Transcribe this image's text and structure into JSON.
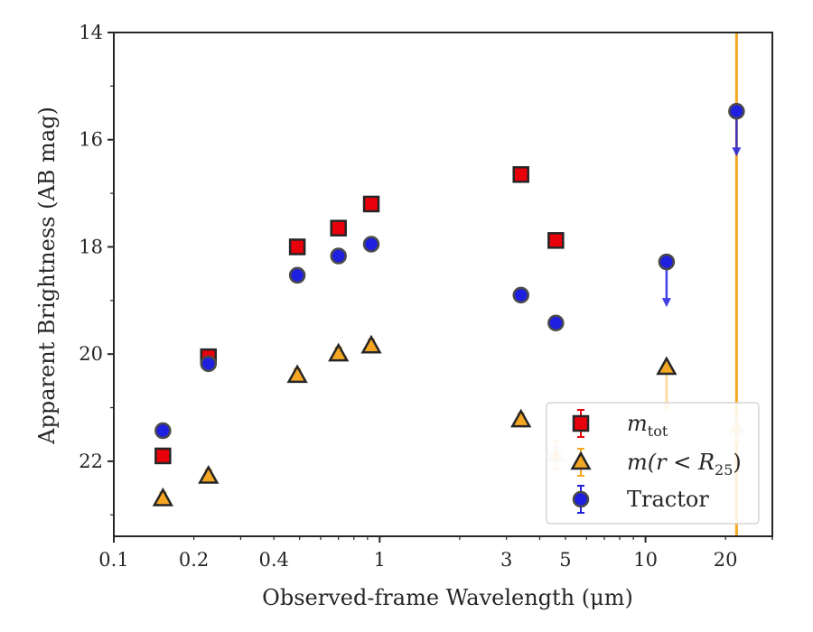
{
  "chart_data": {
    "type": "scatter",
    "xlabel": "Observed-frame Wavelength (μm)",
    "ylabel": "Apparent Brightness (AB mag)",
    "xscale": "log",
    "xlim": [
      0.1,
      30
    ],
    "ylim": [
      23.4,
      14
    ],
    "y_inverted": true,
    "x_ticks": [
      {
        "value": 0.1,
        "label": "0.1"
      },
      {
        "value": 0.2,
        "label": "0.2"
      },
      {
        "value": 0.4,
        "label": "0.4"
      },
      {
        "value": 1,
        "label": "1"
      },
      {
        "value": 3,
        "label": "3"
      },
      {
        "value": 5,
        "label": "5"
      },
      {
        "value": 10,
        "label": "10"
      },
      {
        "value": 20,
        "label": "20"
      }
    ],
    "y_ticks": [
      {
        "value": 14,
        "label": "14"
      },
      {
        "value": 16,
        "label": "16"
      },
      {
        "value": 18,
        "label": "18"
      },
      {
        "value": 20,
        "label": "20"
      },
      {
        "value": 22,
        "label": "22"
      }
    ],
    "grid": false,
    "legend_position": "lower-right",
    "vertical_line": {
      "x": 22,
      "color": "#f5a623"
    },
    "series": [
      {
        "name": "m_tot",
        "legend_main": "m",
        "legend_sub": "tot",
        "marker": "square",
        "color": "#e8000b",
        "points": [
          {
            "x": 0.153,
            "y": 21.9
          },
          {
            "x": 0.227,
            "y": 20.05
          },
          {
            "x": 0.49,
            "y": 18.0
          },
          {
            "x": 0.7,
            "y": 17.65
          },
          {
            "x": 0.93,
            "y": 17.2
          },
          {
            "x": 3.4,
            "y": 16.65
          },
          {
            "x": 4.6,
            "y": 17.88
          }
        ]
      },
      {
        "name": "m(r < R_25)",
        "legend_main": "m(r < R",
        "legend_sub": "25",
        "legend_tail": ")",
        "marker": "triangle",
        "color": "#f5a623",
        "points": [
          {
            "x": 0.153,
            "y": 22.7
          },
          {
            "x": 0.227,
            "y": 22.28
          },
          {
            "x": 0.49,
            "y": 20.4
          },
          {
            "x": 0.7,
            "y": 20.0
          },
          {
            "x": 0.93,
            "y": 19.85
          },
          {
            "x": 3.4,
            "y": 21.23
          },
          {
            "x": 4.6,
            "y": 21.88,
            "faded": true
          },
          {
            "x": 12,
            "y": 20.25,
            "upper_limit": true
          },
          {
            "x": 22,
            "y": 21.38,
            "faded": true
          }
        ]
      },
      {
        "name": "Tractor",
        "legend_main": "Tractor",
        "marker": "circle",
        "color": "#1f1fe0",
        "points": [
          {
            "x": 0.153,
            "y": 21.43
          },
          {
            "x": 0.227,
            "y": 20.18
          },
          {
            "x": 0.49,
            "y": 18.53
          },
          {
            "x": 0.7,
            "y": 18.17
          },
          {
            "x": 0.93,
            "y": 17.95
          },
          {
            "x": 3.4,
            "y": 18.9
          },
          {
            "x": 4.6,
            "y": 19.42
          },
          {
            "x": 12,
            "y": 18.28,
            "upper_limit": true
          },
          {
            "x": 22,
            "y": 15.47,
            "upper_limit": true
          }
        ]
      }
    ]
  }
}
